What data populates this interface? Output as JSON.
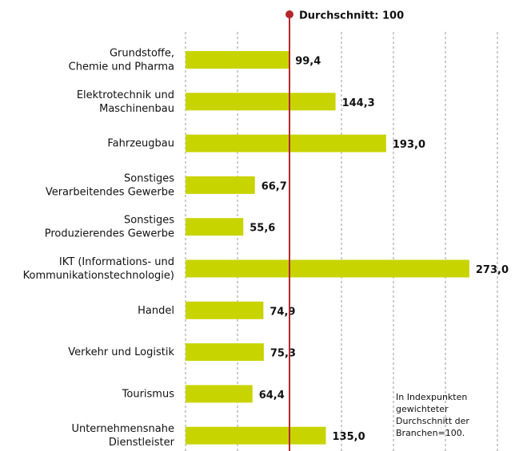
{
  "chart_data": {
    "type": "barh",
    "categories": [
      "Grundstoffe,\nChemie und Pharma",
      "Elektrotechnik und\nMaschinenbau",
      "Fahrzeugbau",
      "Sonstiges\nVerarbeitendes Gewerbe",
      "Sonstiges\nProduzierendes Gewerbe",
      "IKT (Informations- und\nKommunikationstechnologie)",
      "Handel",
      "Verkehr und Logistik",
      "Tourismus",
      "Unternehmensnahe\nDienstleister"
    ],
    "values": [
      99.4,
      144.3,
      193.0,
      66.7,
      55.6,
      273.0,
      74.9,
      75.3,
      64.4,
      135.0
    ],
    "value_labels": [
      "99,4",
      "144,3",
      "193,0",
      "66,7",
      "55,6",
      "273,0",
      "74,9",
      "75,3",
      "64,4",
      "135,0"
    ],
    "color": "#c8d400",
    "xlim": [
      0,
      300
    ],
    "xticks": [
      0,
      50,
      150,
      200,
      250,
      300
    ],
    "grid": true,
    "reference_line": {
      "value": 100,
      "label": "Durchschnitt: 100",
      "color": "#b5272d"
    },
    "note": "In Indexpunkten\ngewichteter\nDurchschnitt der\nBranchen=100."
  }
}
